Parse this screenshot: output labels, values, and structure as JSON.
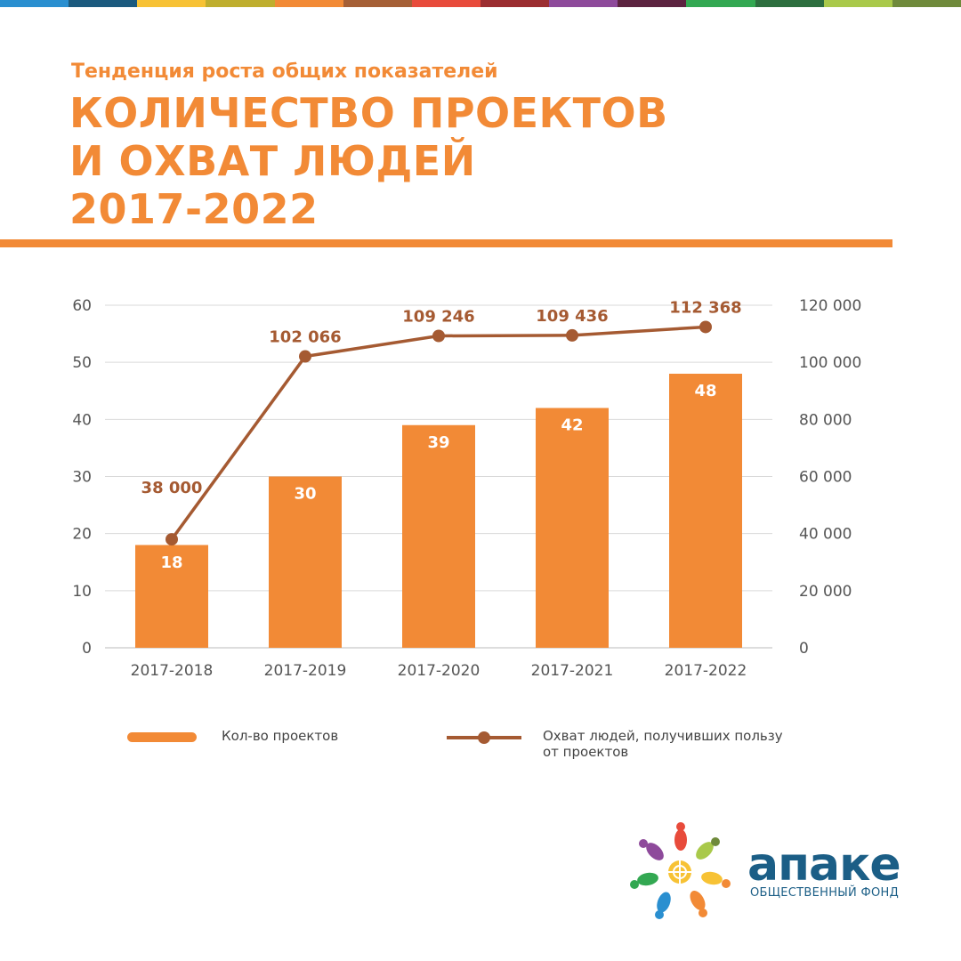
{
  "stripe_colors": [
    "#2a8fd0",
    "#1b5a7e",
    "#f7c235",
    "#bfae2e",
    "#f28a36",
    "#a55f36",
    "#e84b3b",
    "#9b2d30",
    "#8e4a9b",
    "#5c2340",
    "#33a852",
    "#2d6e3e",
    "#a9c94a",
    "#6f8a3b"
  ],
  "header": {
    "subtitle": "Тенденция роста общих показателей",
    "title_line1": "КОЛИЧЕСТВО ПРОЕКТОВ",
    "title_line2": "И ОХВАТ ЛЮДЕЙ",
    "title_line3": "2017-2022"
  },
  "chart_data": {
    "type": "bar",
    "categories": [
      "2017-2018",
      "2017-2019",
      "2017-2020",
      "2017-2021",
      "2017-2022"
    ],
    "series": [
      {
        "name": "Кол-во проектов",
        "type": "bar",
        "axis": "left",
        "values": [
          18,
          30,
          39,
          42,
          48
        ],
        "labels": [
          "18",
          "30",
          "39",
          "42",
          "48"
        ],
        "color": "#f28a36"
      },
      {
        "name": "Охват людей, получивших пользу от проектов",
        "type": "line",
        "axis": "right",
        "values": [
          38000,
          102066,
          109246,
          109436,
          112368
        ],
        "labels": [
          "38 000",
          "102 066",
          "109 246",
          "109 436",
          "112 368"
        ],
        "color": "#a55a32"
      }
    ],
    "y_left": {
      "range": [
        0,
        60
      ],
      "ticks": [
        "0",
        "10",
        "20",
        "30",
        "40",
        "50",
        "60"
      ]
    },
    "y_right": {
      "range": [
        0,
        120000
      ],
      "ticks": [
        "0",
        "20 000",
        "40 000",
        "60 000",
        "80 000",
        "100 000",
        "120 000"
      ]
    },
    "grid": true,
    "legend_position": "bottom"
  },
  "legend": {
    "bar_label": "Кол-во проектов",
    "line_label_1": "Охват людей, получивших пользу",
    "line_label_2": "от проектов"
  },
  "logo": {
    "name": "апаке",
    "subtitle": "ОБЩЕСТВЕННЫЙ ФОНД"
  }
}
